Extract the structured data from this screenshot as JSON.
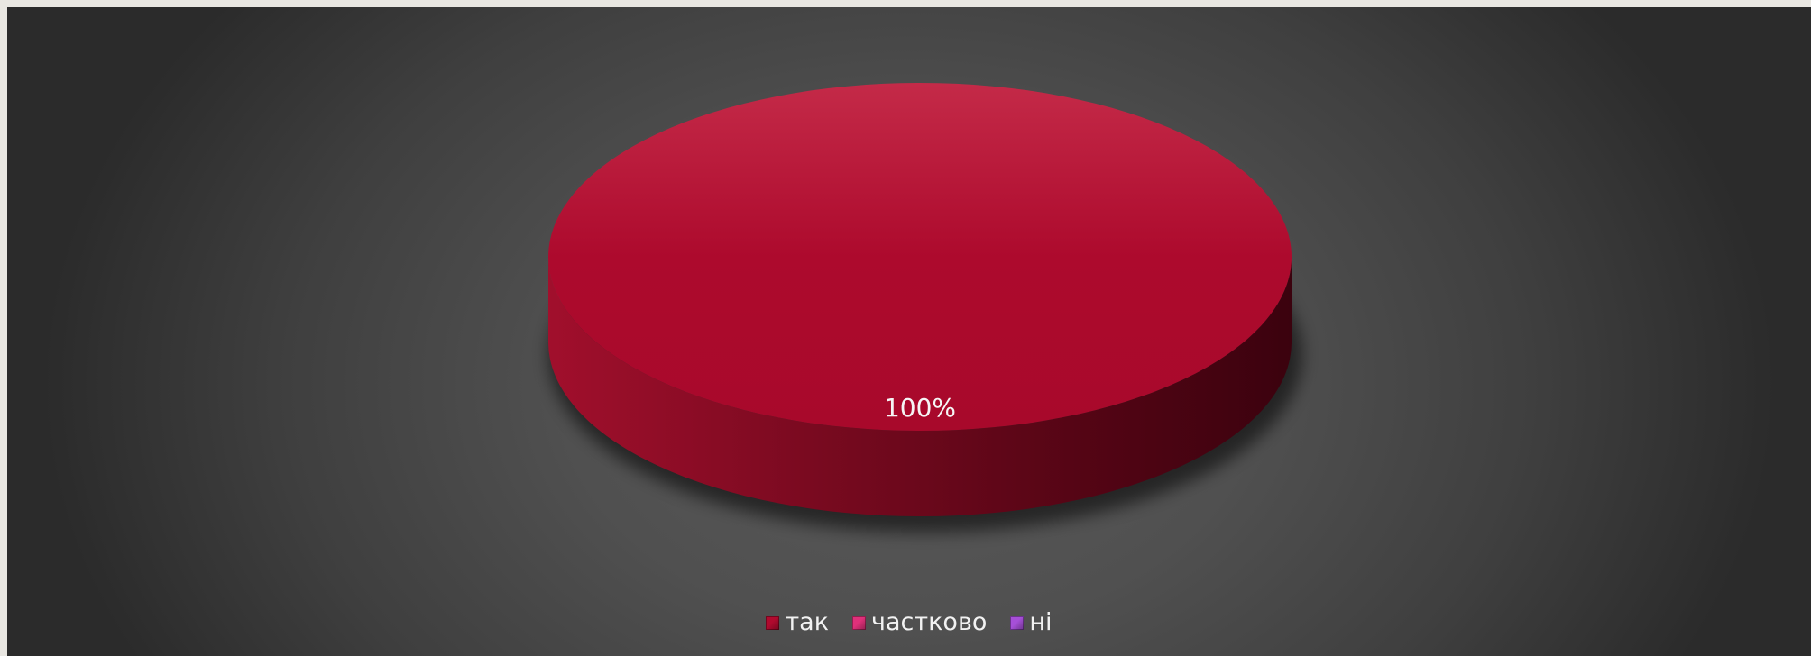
{
  "chart_data": {
    "type": "pie",
    "style": "3d",
    "categories": [
      "так",
      "частково",
      "ні"
    ],
    "values": [
      100,
      0,
      0
    ],
    "data_labels": [
      "100%"
    ],
    "colors": [
      "#b00a2e",
      "#e0307a",
      "#a64fd8"
    ],
    "legend_position": "bottom"
  }
}
